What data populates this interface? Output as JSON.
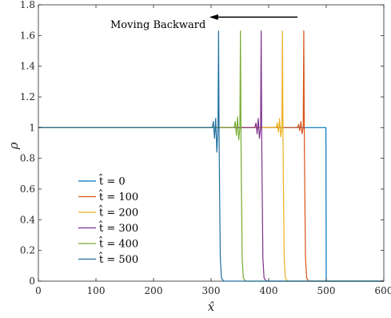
{
  "chart_data": {
    "type": "line",
    "xlabel": "x̂",
    "ylabel": "ρ",
    "xlim": [
      0,
      600
    ],
    "ylim": [
      0,
      1.8
    ],
    "xticks": [
      0,
      100,
      200,
      300,
      400,
      500,
      600
    ],
    "yticks": [
      0,
      0.2,
      0.4,
      0.6,
      0.8,
      1,
      1.2,
      1.4,
      1.6,
      1.8
    ],
    "xtick_labels": [
      "0",
      "100",
      "200",
      "300",
      "400",
      "500",
      "600"
    ],
    "ytick_labels": [
      "0",
      "0.2",
      "0.4",
      "0.6",
      "0.8",
      "1",
      "1.2",
      "1.4",
      "1.6",
      "1.8"
    ],
    "grid": false,
    "legend_position": "lower-left",
    "annotation": {
      "text": "Moving Backward",
      "arrow_from": [
        450,
        1.72
      ],
      "arrow_to": [
        297,
        1.72
      ]
    },
    "series": [
      {
        "name": "t̂ = 0",
        "legend_label": "t̂ = 0",
        "color": "#0072BD",
        "x": [
          0,
          499,
          499.5,
          500,
          600
        ],
        "y": [
          1,
          1,
          1,
          0,
          0
        ]
      },
      {
        "name": "t̂ = 100",
        "legend_label": "t̂ = 100",
        "color": "#D95319",
        "x": [
          0,
          450,
          452,
          454,
          456,
          458,
          460,
          461,
          462,
          463,
          464,
          466,
          470,
          600
        ],
        "y": [
          1,
          1,
          1.02,
          0.98,
          1.04,
          0.96,
          1.0,
          1.63,
          0.9,
          0.5,
          0.15,
          0.02,
          0,
          0
        ]
      },
      {
        "name": "t̂ = 200",
        "legend_label": "t̂ = 200",
        "color": "#EDB120",
        "x": [
          0,
          413,
          415,
          417,
          419,
          421,
          423,
          424,
          425,
          426,
          427,
          429,
          433,
          600
        ],
        "y": [
          1,
          1,
          1.03,
          0.97,
          1.06,
          0.94,
          1.0,
          1.63,
          0.9,
          0.5,
          0.15,
          0.02,
          0,
          0
        ]
      },
      {
        "name": "t̂ = 300",
        "legend_label": "t̂ = 300",
        "color": "#7E2F8E",
        "x": [
          0,
          376,
          378,
          380,
          382,
          384,
          386,
          387,
          388,
          389,
          390,
          392,
          396,
          600
        ],
        "y": [
          1,
          1,
          1.03,
          0.96,
          1.06,
          0.93,
          1.0,
          1.63,
          0.9,
          0.5,
          0.15,
          0.02,
          0,
          0
        ]
      },
      {
        "name": "t̂ = 400",
        "legend_label": "t̂ = 400",
        "color": "#77AC30",
        "x": [
          0,
          340,
          342,
          344,
          346,
          348,
          350,
          351,
          352,
          353,
          354,
          356,
          360,
          600
        ],
        "y": [
          1,
          1,
          1.04,
          0.95,
          1.07,
          0.92,
          1.0,
          1.63,
          0.9,
          0.5,
          0.15,
          0.02,
          0,
          0
        ]
      },
      {
        "name": "t̂ = 500",
        "legend_label": "t̂ = 500",
        "color": "#1F6FA0",
        "x": [
          0,
          302,
          304,
          306,
          308,
          310,
          312,
          313,
          314,
          315,
          316,
          318,
          322,
          600
        ],
        "y": [
          1,
          1,
          1.04,
          0.93,
          1.06,
          0.84,
          1.0,
          1.63,
          0.9,
          0.5,
          0.15,
          0.02,
          0,
          0
        ]
      }
    ]
  }
}
